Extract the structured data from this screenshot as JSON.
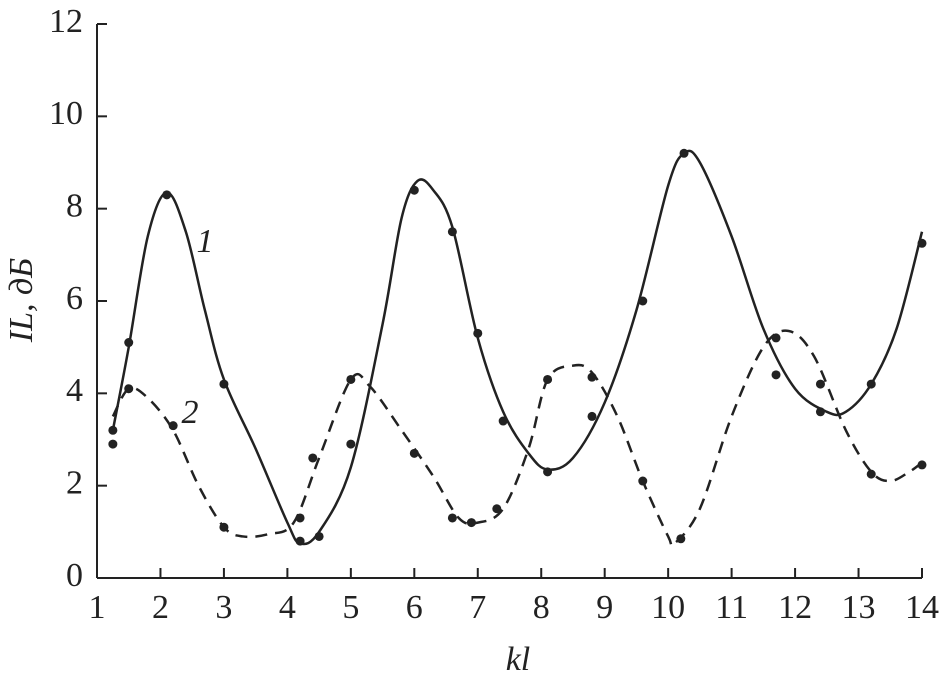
{
  "chart_data": {
    "type": "line",
    "xlabel": "kl",
    "ylabel": "IL, дБ",
    "xlim": [
      1,
      14
    ],
    "xticks": [
      1,
      2,
      3,
      4,
      5,
      6,
      7,
      8,
      9,
      10,
      11,
      12,
      13,
      14
    ],
    "ylim": [
      0,
      12
    ],
    "yticks": [
      0,
      2,
      4,
      6,
      8,
      10,
      12
    ],
    "grid": false,
    "series": [
      {
        "name": "1",
        "color": "#222222",
        "style": "solid",
        "x": [
          1.25,
          1.5,
          1.8,
          2.1,
          2.4,
          2.7,
          3.0,
          3.5,
          4.0,
          4.2,
          4.5,
          5.0,
          5.5,
          5.8,
          6.05,
          6.3,
          6.6,
          7.0,
          7.4,
          7.8,
          8.1,
          8.5,
          9.0,
          9.5,
          10.0,
          10.25,
          10.5,
          11.0,
          11.5,
          12.0,
          12.5,
          12.8,
          13.2,
          13.6,
          14.0
        ],
        "values": [
          3.2,
          5.0,
          7.4,
          8.35,
          7.5,
          5.8,
          4.3,
          2.8,
          1.2,
          0.75,
          1.0,
          2.4,
          5.5,
          7.8,
          8.6,
          8.4,
          7.6,
          5.2,
          3.6,
          2.7,
          2.35,
          2.6,
          3.8,
          5.8,
          8.5,
          9.2,
          9.0,
          7.4,
          5.4,
          4.1,
          3.6,
          3.6,
          4.2,
          5.4,
          7.5
        ],
        "marker_x": [
          1.25,
          1.5,
          2.1,
          3.0,
          4.2,
          4.5,
          5.0,
          6.0,
          6.6,
          7.0,
          7.4,
          8.1,
          8.8,
          9.6,
          10.25,
          11.7,
          12.4,
          13.2,
          14.0
        ],
        "marker_values": [
          2.9,
          5.1,
          8.3,
          4.2,
          0.8,
          0.9,
          2.9,
          8.4,
          7.5,
          5.3,
          3.4,
          2.3,
          3.5,
          6.0,
          9.2,
          4.4,
          3.6,
          4.2,
          7.25
        ]
      },
      {
        "name": "2",
        "color": "#222222",
        "style": "dashed",
        "x": [
          1.25,
          1.5,
          1.8,
          2.2,
          2.6,
          3.0,
          3.3,
          3.7,
          4.1,
          4.5,
          5.0,
          5.3,
          5.8,
          6.3,
          6.7,
          7.0,
          7.4,
          7.8,
          8.1,
          8.5,
          8.8,
          9.2,
          9.6,
          10.0,
          10.1,
          10.5,
          11.0,
          11.5,
          11.9,
          12.3,
          12.8,
          13.2,
          13.5,
          13.8,
          14.0
        ],
        "values": [
          3.5,
          4.1,
          3.9,
          3.2,
          2.0,
          1.1,
          0.9,
          0.95,
          1.2,
          2.6,
          4.3,
          4.15,
          3.2,
          2.2,
          1.3,
          1.2,
          1.5,
          2.8,
          4.3,
          4.6,
          4.45,
          3.5,
          2.1,
          0.9,
          0.75,
          1.5,
          3.5,
          5.0,
          5.35,
          4.8,
          3.2,
          2.3,
          2.1,
          2.3,
          2.5
        ],
        "marker_x": [
          1.25,
          1.5,
          2.2,
          3.0,
          4.2,
          4.4,
          5.0,
          6.0,
          6.6,
          6.9,
          7.3,
          8.1,
          8.8,
          9.6,
          10.2,
          11.7,
          12.4,
          13.2,
          14.0
        ],
        "marker_values": [
          3.2,
          4.1,
          3.3,
          1.1,
          1.3,
          2.6,
          4.3,
          2.7,
          1.3,
          1.2,
          1.5,
          4.3,
          4.35,
          2.1,
          0.85,
          5.2,
          4.2,
          2.25,
          2.45
        ]
      }
    ]
  }
}
